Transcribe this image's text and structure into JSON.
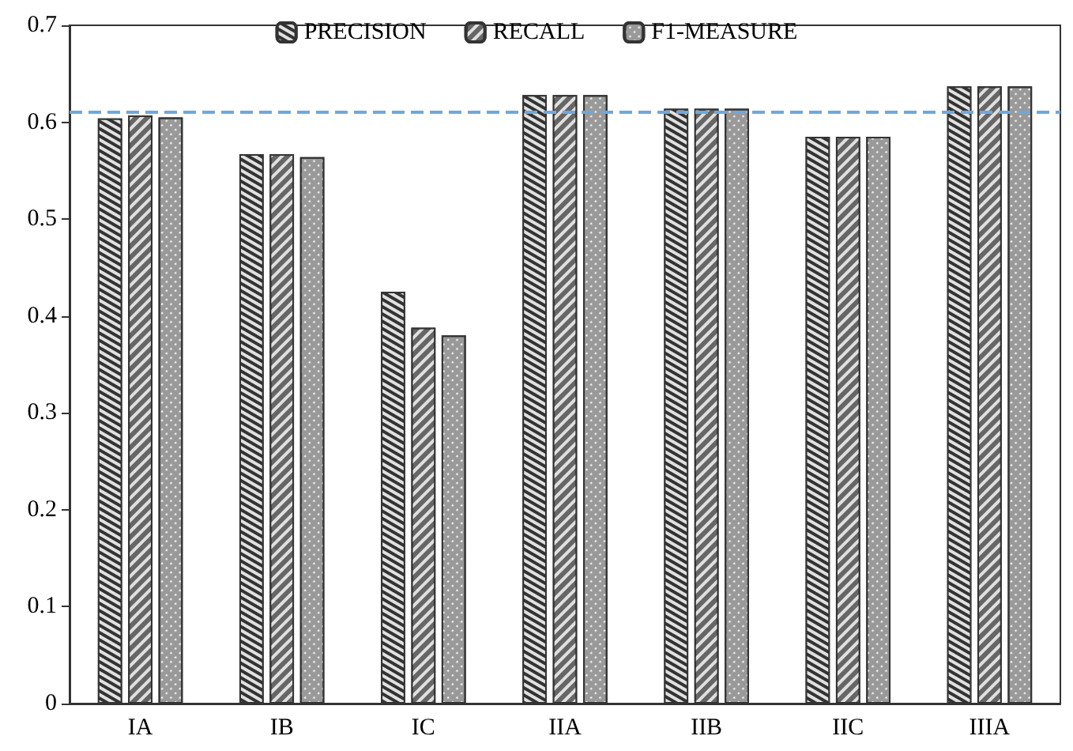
{
  "chart_data": {
    "type": "bar",
    "categories": [
      "IA",
      "IB",
      "IC",
      "IIA",
      "IIB",
      "IIC",
      "IIIA"
    ],
    "series": [
      {
        "name": "PRECISION",
        "color": "#333333",
        "values": [
          0.604,
          0.567,
          0.425,
          0.628,
          0.614,
          0.585,
          0.637
        ]
      },
      {
        "name": "RECALL",
        "color": "#666666",
        "values": [
          0.607,
          0.567,
          0.388,
          0.628,
          0.614,
          0.585,
          0.637
        ]
      },
      {
        "name": "F1-MEASURE",
        "color": "#999999",
        "values": [
          0.605,
          0.564,
          0.38,
          0.628,
          0.614,
          0.585,
          0.637
        ]
      }
    ],
    "ylim": [
      0,
      0.7
    ],
    "yticks": [
      0,
      0.1,
      0.2,
      0.3,
      0.4,
      0.5,
      0.6,
      0.7
    ],
    "grid": false,
    "legend": "top",
    "ref_lines": [
      {
        "axis": "y",
        "value": 0.612,
        "color": "#6fa8dc",
        "line_style": "dashed"
      }
    ]
  }
}
